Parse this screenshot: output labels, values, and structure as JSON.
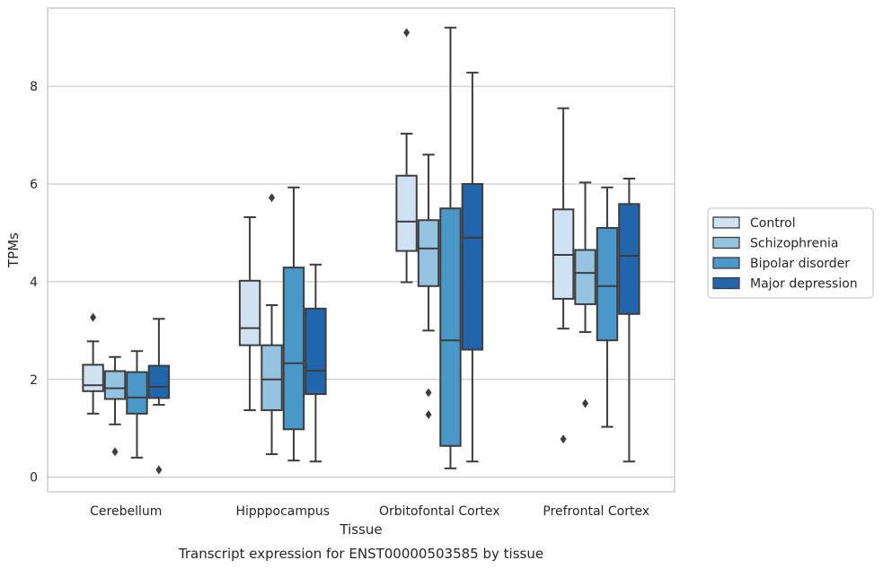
{
  "chart_data": {
    "type": "boxplot",
    "caption": "Transcript expression for ENST00000503585 by tissue",
    "xlabel": "Tissue",
    "ylabel": "TPMs",
    "ylim": [
      -0.3,
      9.6
    ],
    "yticks": [
      0,
      2,
      4,
      6,
      8
    ],
    "grid": true,
    "legend_position": "right",
    "categories": [
      "Cerebellum",
      "Hipppocampus",
      "Orbitofontal Cortex",
      "Prefrontal Cortex"
    ],
    "series": [
      {
        "name": "Control",
        "color": "#d0e1f2",
        "boxes": [
          {
            "whislo": 1.3,
            "q1": 1.76,
            "med": 1.88,
            "q3": 2.3,
            "whishi": 2.78,
            "fliers": [
              3.27
            ]
          },
          {
            "whislo": 1.37,
            "q1": 2.7,
            "med": 3.05,
            "q3": 4.02,
            "whishi": 5.32,
            "fliers": []
          },
          {
            "whislo": 3.99,
            "q1": 4.63,
            "med": 5.23,
            "q3": 6.17,
            "whishi": 7.03,
            "fliers": [
              9.1
            ]
          },
          {
            "whislo": 3.04,
            "q1": 3.65,
            "med": 4.55,
            "q3": 5.48,
            "whishi": 7.55,
            "fliers": [
              0.78
            ]
          }
        ]
      },
      {
        "name": "Schizophrenia",
        "color": "#94c4df",
        "boxes": [
          {
            "whislo": 1.08,
            "q1": 1.6,
            "med": 1.82,
            "q3": 2.17,
            "whishi": 2.46,
            "fliers": [
              0.52
            ]
          },
          {
            "whislo": 0.47,
            "q1": 1.37,
            "med": 2.0,
            "q3": 2.7,
            "whishi": 3.52,
            "fliers": [
              5.72
            ]
          },
          {
            "whislo": 3.0,
            "q1": 3.91,
            "med": 4.68,
            "q3": 5.26,
            "whishi": 6.6,
            "fliers": [
              1.73,
              1.28
            ]
          },
          {
            "whislo": 2.97,
            "q1": 3.54,
            "med": 4.18,
            "q3": 4.65,
            "whishi": 6.03,
            "fliers": [
              1.51
            ]
          }
        ]
      },
      {
        "name": "Bipolar disorder",
        "color": "#4a98c9",
        "boxes": [
          {
            "whislo": 0.4,
            "q1": 1.3,
            "med": 1.63,
            "q3": 2.15,
            "whishi": 2.58,
            "fliers": []
          },
          {
            "whislo": 0.34,
            "q1": 0.98,
            "med": 2.33,
            "q3": 4.29,
            "whishi": 5.93,
            "fliers": []
          },
          {
            "whislo": 0.18,
            "q1": 0.64,
            "med": 2.8,
            "q3": 5.5,
            "whishi": 9.2,
            "fliers": []
          },
          {
            "whislo": 1.03,
            "q1": 2.8,
            "med": 3.91,
            "q3": 5.1,
            "whishi": 5.93,
            "fliers": []
          }
        ]
      },
      {
        "name": "Major depression",
        "color": "#2166ac",
        "boxes": [
          {
            "whislo": 1.48,
            "q1": 1.62,
            "med": 1.85,
            "q3": 2.28,
            "whishi": 3.24,
            "fliers": [
              0.15
            ]
          },
          {
            "whislo": 0.32,
            "q1": 1.7,
            "med": 2.18,
            "q3": 3.45,
            "whishi": 4.35,
            "fliers": []
          },
          {
            "whislo": 0.32,
            "q1": 2.61,
            "med": 4.9,
            "q3": 6.0,
            "whishi": 8.28,
            "fliers": []
          },
          {
            "whislo": 0.32,
            "q1": 3.34,
            "med": 4.53,
            "q3": 5.59,
            "whishi": 6.11,
            "fliers": []
          }
        ]
      }
    ]
  }
}
